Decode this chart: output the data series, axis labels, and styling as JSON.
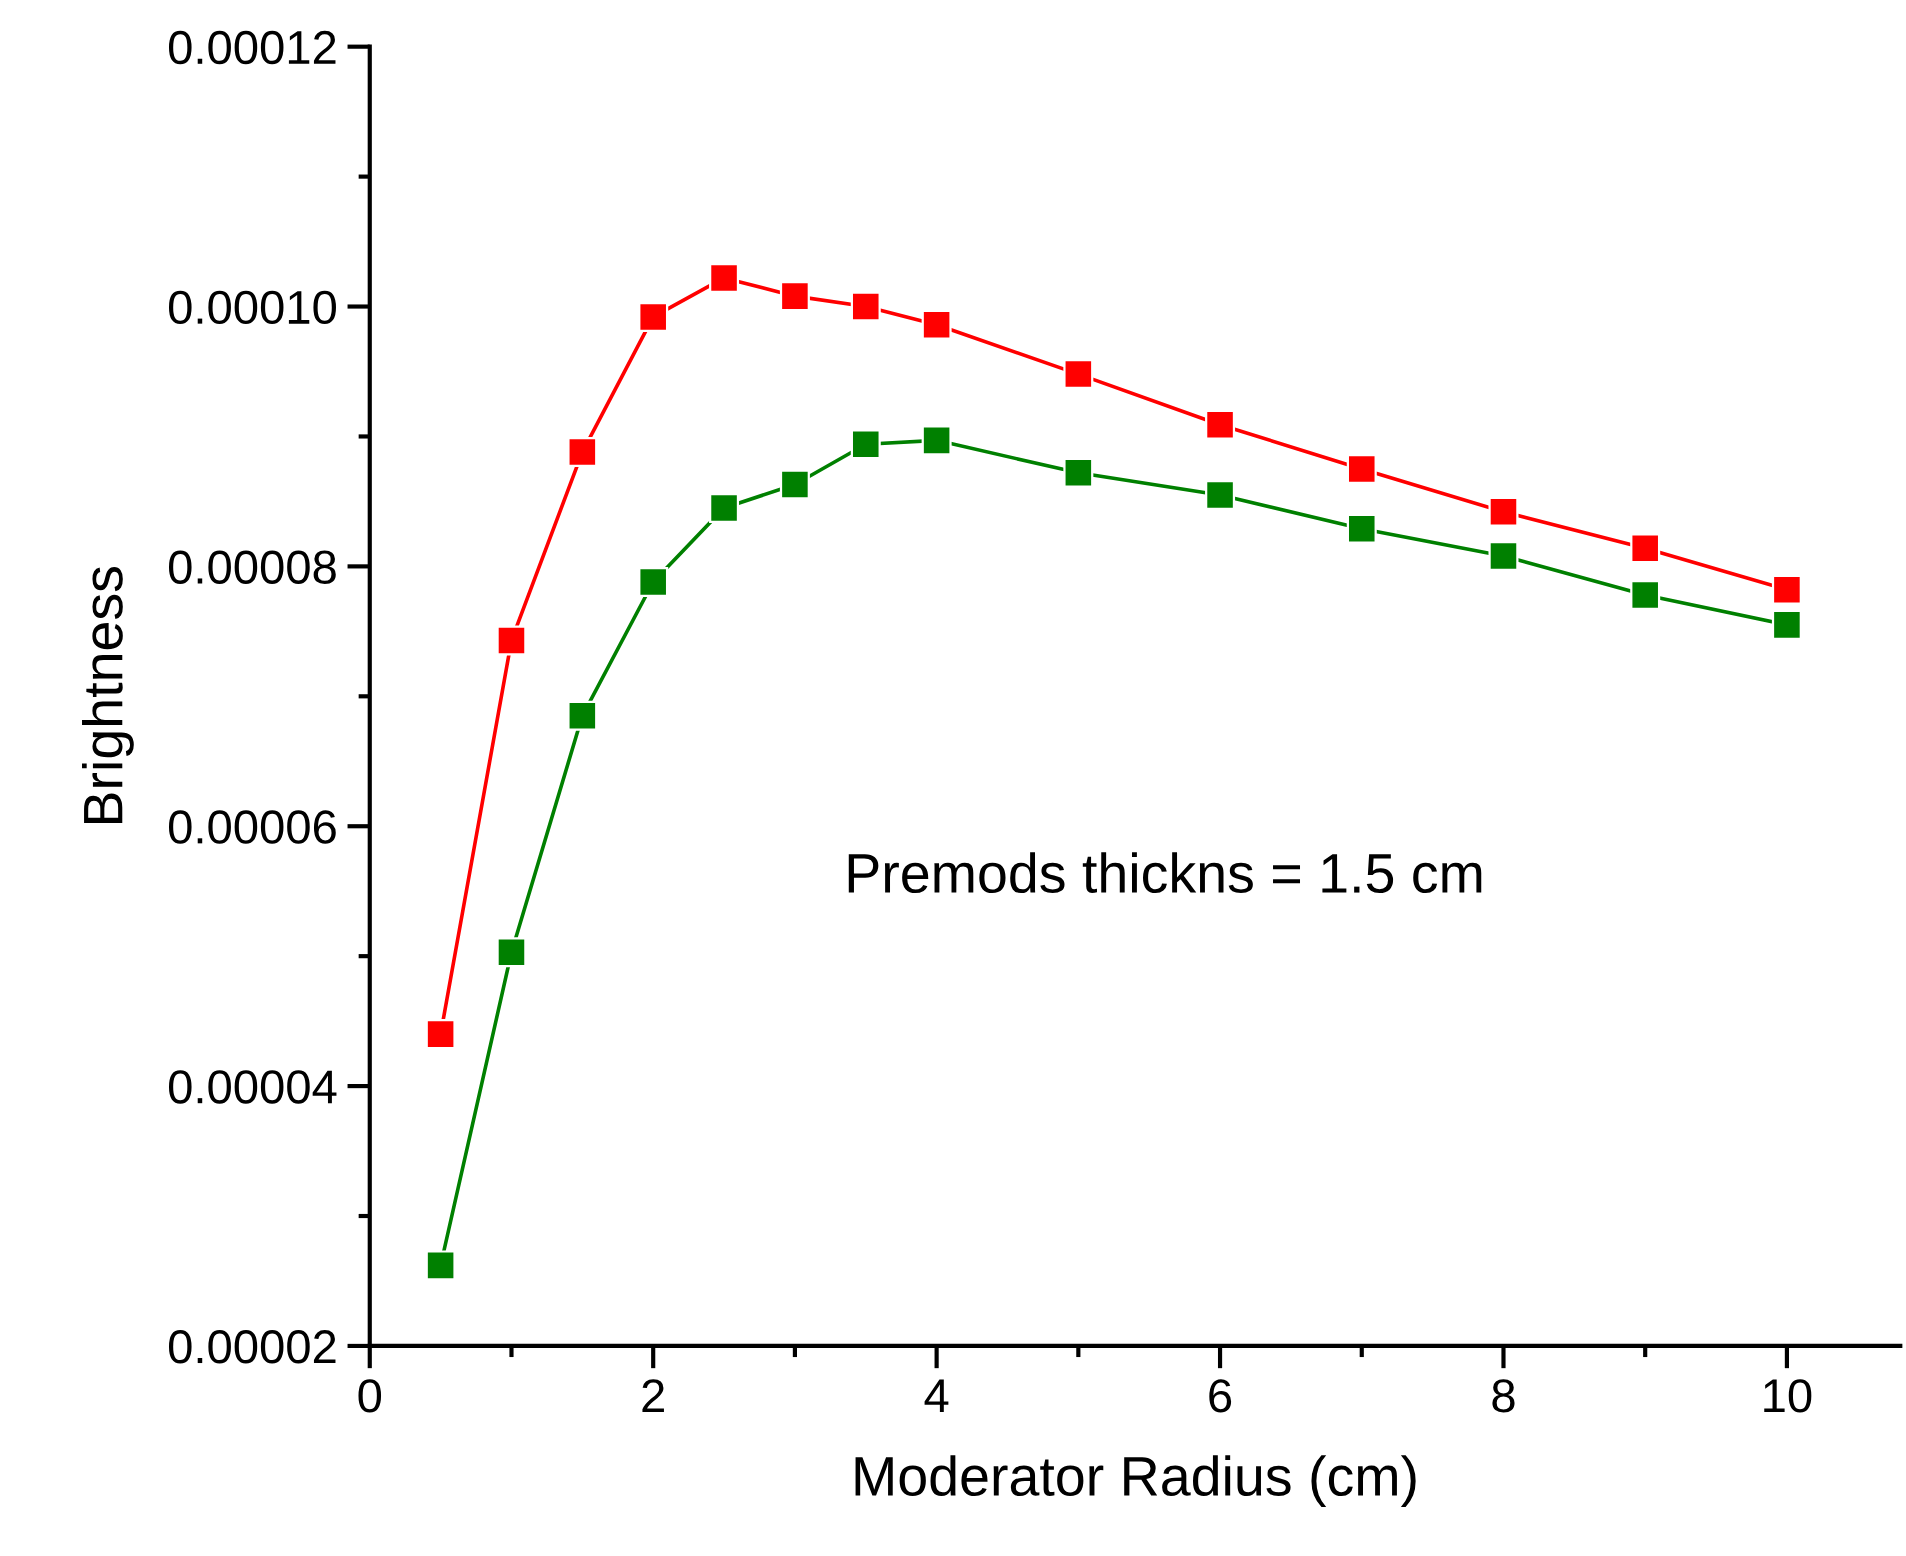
{
  "chart_data": {
    "type": "line",
    "xlabel": "Moderator Radius (cm)",
    "ylabel": "Brightness",
    "annotations": [
      "Premods thickns = 1.5 cm"
    ],
    "x": [
      0.5,
      1,
      1.5,
      2,
      2.5,
      3,
      3.5,
      4,
      5,
      6,
      7,
      8,
      9,
      10
    ],
    "series": [
      {
        "color": "#ff0000",
        "values": [
          4.4e-05,
          7.43e-05,
          8.88e-05,
          9.92e-05,
          0.0001022,
          0.0001008,
          0.0001,
          9.86e-05,
          9.48e-05,
          9.09e-05,
          8.75e-05,
          8.42e-05,
          8.14e-05,
          7.82e-05
        ]
      },
      {
        "color": "#008000",
        "values": [
          2.62e-05,
          5.03e-05,
          6.85e-05,
          7.88e-05,
          8.45e-05,
          8.63e-05,
          8.94e-05,
          8.97e-05,
          8.72e-05,
          8.55e-05,
          8.29e-05,
          8.08e-05,
          7.78e-05,
          7.55e-05
        ]
      }
    ],
    "xlim": [
      0,
      10.8
    ],
    "xticks": [
      0,
      {
        "value": 1,
        "label": null
      },
      2,
      {
        "value": 3,
        "label": null
      },
      4,
      {
        "value": 5,
        "label": null
      },
      6,
      {
        "value": 7,
        "label": null
      },
      8,
      {
        "value": 9,
        "label": null
      },
      10
    ],
    "ylim": [
      2e-05,
      0.00012
    ],
    "yticks": [
      {
        "value": 2e-05,
        "label": "0.00002"
      },
      {
        "value": 3e-05,
        "label": null
      },
      {
        "value": 4e-05,
        "label": "0.00004"
      },
      {
        "value": 5e-05,
        "label": null
      },
      {
        "value": 6e-05,
        "label": "0.00006"
      },
      {
        "value": 7e-05,
        "label": null
      },
      {
        "value": 8e-05,
        "label": "0.00008"
      },
      {
        "value": 9e-05,
        "label": null
      },
      {
        "value": 0.0001,
        "label": "0.00010"
      },
      {
        "value": 0.00011,
        "label": null
      },
      {
        "value": 0.00012,
        "label": "0.00012"
      }
    ],
    "marker": "square",
    "line_style": "solid",
    "grid": false,
    "legend": false
  }
}
